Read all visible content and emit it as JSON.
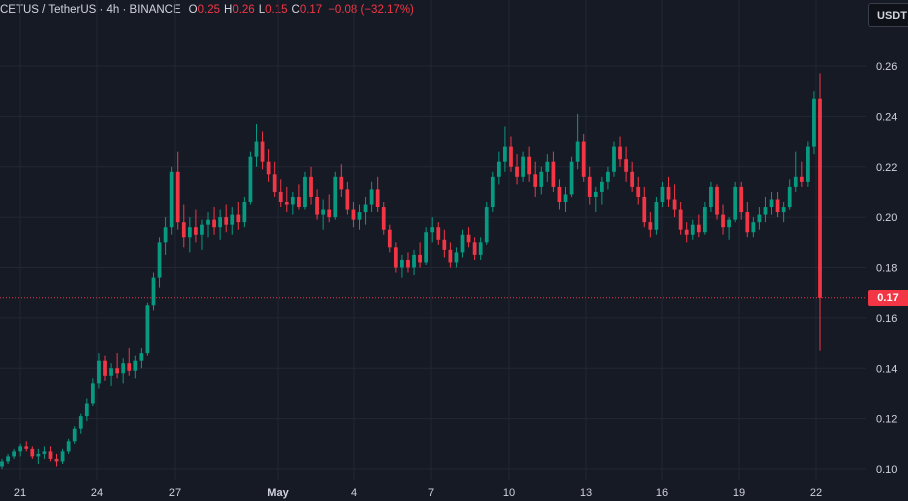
{
  "header": {
    "symbol": "CETUS / TetherUS · 4h · BINANCE",
    "o_label": "O",
    "o_value": "0.25",
    "h_label": "H",
    "h_value": "0.26",
    "l_label": "L",
    "l_value": "0.15",
    "c_label": "C",
    "c_value": "0.17",
    "change": "−0.08 (−32.17%)"
  },
  "currency_button": "USDT",
  "last_price_label": "0.17",
  "colors": {
    "up": "#089981",
    "down": "#f23645",
    "background": "#161a25",
    "grid": "#232734",
    "text": "#d1d4dc"
  },
  "chart_data": {
    "type": "candlestick",
    "yaxis": {
      "ticks": [
        "0.26",
        "0.24",
        "0.22",
        "0.20",
        "0.18",
        "0.16",
        "0.14",
        "0.12",
        "0.10"
      ],
      "ylim": [
        0.095,
        0.27
      ]
    },
    "xaxis": {
      "ticks": [
        "21",
        "24",
        "27",
        "May",
        "4",
        "7",
        "10",
        "13",
        "16",
        "19",
        "22"
      ]
    },
    "last_price": 0.168,
    "candles": [
      [
        0.101,
        0.104,
        0.1,
        0.103
      ],
      [
        0.103,
        0.106,
        0.102,
        0.105
      ],
      [
        0.105,
        0.108,
        0.104,
        0.107
      ],
      [
        0.107,
        0.11,
        0.105,
        0.109
      ],
      [
        0.109,
        0.111,
        0.107,
        0.108
      ],
      [
        0.108,
        0.109,
        0.104,
        0.105
      ],
      [
        0.105,
        0.108,
        0.102,
        0.106
      ],
      [
        0.106,
        0.109,
        0.104,
        0.107
      ],
      [
        0.107,
        0.109,
        0.103,
        0.104
      ],
      [
        0.104,
        0.106,
        0.101,
        0.103
      ],
      [
        0.103,
        0.108,
        0.102,
        0.107
      ],
      [
        0.107,
        0.112,
        0.106,
        0.111
      ],
      [
        0.111,
        0.117,
        0.11,
        0.116
      ],
      [
        0.116,
        0.122,
        0.114,
        0.121
      ],
      [
        0.121,
        0.128,
        0.119,
        0.126
      ],
      [
        0.126,
        0.136,
        0.125,
        0.134
      ],
      [
        0.134,
        0.146,
        0.132,
        0.143
      ],
      [
        0.143,
        0.145,
        0.135,
        0.137
      ],
      [
        0.137,
        0.142,
        0.133,
        0.14
      ],
      [
        0.14,
        0.146,
        0.136,
        0.138
      ],
      [
        0.138,
        0.144,
        0.134,
        0.142
      ],
      [
        0.142,
        0.148,
        0.137,
        0.139
      ],
      [
        0.139,
        0.145,
        0.136,
        0.143
      ],
      [
        0.143,
        0.148,
        0.14,
        0.146
      ],
      [
        0.146,
        0.166,
        0.145,
        0.165
      ],
      [
        0.165,
        0.178,
        0.163,
        0.176
      ],
      [
        0.176,
        0.192,
        0.172,
        0.19
      ],
      [
        0.19,
        0.2,
        0.185,
        0.196
      ],
      [
        0.196,
        0.22,
        0.193,
        0.218
      ],
      [
        0.218,
        0.226,
        0.195,
        0.198
      ],
      [
        0.198,
        0.205,
        0.188,
        0.192
      ],
      [
        0.192,
        0.2,
        0.186,
        0.196
      ],
      [
        0.196,
        0.203,
        0.19,
        0.193
      ],
      [
        0.193,
        0.199,
        0.187,
        0.197
      ],
      [
        0.197,
        0.202,
        0.192,
        0.199
      ],
      [
        0.199,
        0.204,
        0.193,
        0.196
      ],
      [
        0.196,
        0.203,
        0.191,
        0.2
      ],
      [
        0.2,
        0.205,
        0.194,
        0.197
      ],
      [
        0.197,
        0.204,
        0.193,
        0.201
      ],
      [
        0.201,
        0.206,
        0.195,
        0.198
      ],
      [
        0.198,
        0.208,
        0.196,
        0.206
      ],
      [
        0.206,
        0.226,
        0.205,
        0.224
      ],
      [
        0.224,
        0.237,
        0.22,
        0.23
      ],
      [
        0.23,
        0.234,
        0.219,
        0.222
      ],
      [
        0.222,
        0.227,
        0.214,
        0.217
      ],
      [
        0.217,
        0.222,
        0.208,
        0.21
      ],
      [
        0.21,
        0.215,
        0.204,
        0.206
      ],
      [
        0.206,
        0.212,
        0.202,
        0.205
      ],
      [
        0.205,
        0.21,
        0.201,
        0.208
      ],
      [
        0.208,
        0.213,
        0.203,
        0.204
      ],
      [
        0.204,
        0.218,
        0.203,
        0.216
      ],
      [
        0.216,
        0.22,
        0.205,
        0.208
      ],
      [
        0.208,
        0.211,
        0.199,
        0.201
      ],
      [
        0.201,
        0.207,
        0.195,
        0.203
      ],
      [
        0.203,
        0.209,
        0.198,
        0.2
      ],
      [
        0.2,
        0.218,
        0.199,
        0.216
      ],
      [
        0.216,
        0.221,
        0.208,
        0.211
      ],
      [
        0.211,
        0.214,
        0.201,
        0.203
      ],
      [
        0.203,
        0.206,
        0.196,
        0.199
      ],
      [
        0.199,
        0.205,
        0.195,
        0.202
      ],
      [
        0.202,
        0.208,
        0.197,
        0.205
      ],
      [
        0.205,
        0.214,
        0.202,
        0.211
      ],
      [
        0.211,
        0.216,
        0.202,
        0.204
      ],
      [
        0.204,
        0.206,
        0.193,
        0.195
      ],
      [
        0.195,
        0.197,
        0.186,
        0.188
      ],
      [
        0.188,
        0.19,
        0.178,
        0.18
      ],
      [
        0.18,
        0.185,
        0.176,
        0.183
      ],
      [
        0.183,
        0.186,
        0.178,
        0.18
      ],
      [
        0.18,
        0.187,
        0.177,
        0.185
      ],
      [
        0.185,
        0.19,
        0.18,
        0.182
      ],
      [
        0.182,
        0.196,
        0.181,
        0.194
      ],
      [
        0.194,
        0.2,
        0.19,
        0.196
      ],
      [
        0.196,
        0.198,
        0.189,
        0.191
      ],
      [
        0.191,
        0.195,
        0.184,
        0.187
      ],
      [
        0.187,
        0.19,
        0.18,
        0.182
      ],
      [
        0.182,
        0.188,
        0.18,
        0.186
      ],
      [
        0.186,
        0.195,
        0.184,
        0.193
      ],
      [
        0.193,
        0.196,
        0.188,
        0.19
      ],
      [
        0.19,
        0.192,
        0.183,
        0.185
      ],
      [
        0.185,
        0.192,
        0.183,
        0.19
      ],
      [
        0.19,
        0.206,
        0.189,
        0.204
      ],
      [
        0.204,
        0.218,
        0.202,
        0.216
      ],
      [
        0.216,
        0.226,
        0.213,
        0.222
      ],
      [
        0.222,
        0.236,
        0.218,
        0.228
      ],
      [
        0.228,
        0.232,
        0.218,
        0.22
      ],
      [
        0.22,
        0.225,
        0.213,
        0.216
      ],
      [
        0.216,
        0.226,
        0.214,
        0.224
      ],
      [
        0.224,
        0.228,
        0.214,
        0.217
      ],
      [
        0.217,
        0.222,
        0.208,
        0.212
      ],
      [
        0.212,
        0.22,
        0.209,
        0.218
      ],
      [
        0.218,
        0.225,
        0.214,
        0.222
      ],
      [
        0.222,
        0.226,
        0.21,
        0.212
      ],
      [
        0.212,
        0.215,
        0.203,
        0.206
      ],
      [
        0.206,
        0.212,
        0.202,
        0.209
      ],
      [
        0.209,
        0.224,
        0.208,
        0.222
      ],
      [
        0.222,
        0.241,
        0.219,
        0.23
      ],
      [
        0.23,
        0.233,
        0.214,
        0.216
      ],
      [
        0.216,
        0.22,
        0.205,
        0.208
      ],
      [
        0.208,
        0.212,
        0.202,
        0.21
      ],
      [
        0.21,
        0.216,
        0.205,
        0.214
      ],
      [
        0.214,
        0.22,
        0.211,
        0.218
      ],
      [
        0.218,
        0.23,
        0.216,
        0.228
      ],
      [
        0.228,
        0.232,
        0.22,
        0.223
      ],
      [
        0.223,
        0.228,
        0.214,
        0.218
      ],
      [
        0.218,
        0.222,
        0.21,
        0.212
      ],
      [
        0.212,
        0.216,
        0.205,
        0.208
      ],
      [
        0.208,
        0.212,
        0.196,
        0.198
      ],
      [
        0.198,
        0.202,
        0.192,
        0.195
      ],
      [
        0.195,
        0.208,
        0.193,
        0.206
      ],
      [
        0.206,
        0.214,
        0.204,
        0.212
      ],
      [
        0.212,
        0.216,
        0.204,
        0.207
      ],
      [
        0.207,
        0.213,
        0.2,
        0.203
      ],
      [
        0.203,
        0.206,
        0.193,
        0.195
      ],
      [
        0.195,
        0.198,
        0.19,
        0.193
      ],
      [
        0.193,
        0.199,
        0.191,
        0.197
      ],
      [
        0.197,
        0.201,
        0.192,
        0.194
      ],
      [
        0.194,
        0.206,
        0.193,
        0.204
      ],
      [
        0.204,
        0.214,
        0.202,
        0.212
      ],
      [
        0.212,
        0.213,
        0.199,
        0.201
      ],
      [
        0.201,
        0.205,
        0.193,
        0.196
      ],
      [
        0.196,
        0.2,
        0.191,
        0.199
      ],
      [
        0.199,
        0.214,
        0.198,
        0.212
      ],
      [
        0.212,
        0.214,
        0.199,
        0.202
      ],
      [
        0.202,
        0.206,
        0.192,
        0.194
      ],
      [
        0.194,
        0.2,
        0.192,
        0.198
      ],
      [
        0.198,
        0.204,
        0.195,
        0.201
      ],
      [
        0.201,
        0.208,
        0.198,
        0.204
      ],
      [
        0.204,
        0.21,
        0.201,
        0.207
      ],
      [
        0.207,
        0.21,
        0.2,
        0.202
      ],
      [
        0.202,
        0.206,
        0.198,
        0.204
      ],
      [
        0.204,
        0.215,
        0.203,
        0.212
      ],
      [
        0.212,
        0.226,
        0.21,
        0.216
      ],
      [
        0.216,
        0.222,
        0.212,
        0.214
      ],
      [
        0.214,
        0.23,
        0.212,
        0.228
      ],
      [
        0.228,
        0.25,
        0.225,
        0.247
      ],
      [
        0.247,
        0.257,
        0.147,
        0.168
      ]
    ]
  }
}
